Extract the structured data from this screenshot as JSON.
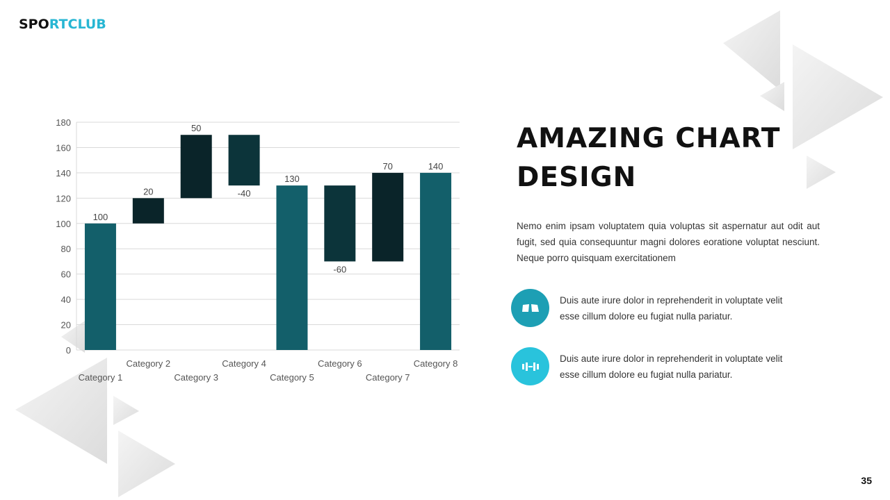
{
  "logo": {
    "part1": "SPO",
    "part2": "RTCLUB"
  },
  "title": "AMAZING CHART DESIGN",
  "body": "Nemo enim ipsam voluptatem quia voluptas sit aspernatur aut odit aut fugit, sed quia consequuntur magni dolores eoratione voluptat nesciunt. Neque porro quisquam exercitationem",
  "features": [
    {
      "icon": "boxing-ring-icon",
      "text": "Duis aute irure dolor in reprehenderit in voluptate velit esse cillum dolore eu fugiat nulla pariatur.",
      "color": "#1d9fb4"
    },
    {
      "icon": "dumbbell-icon",
      "text": "Duis aute irure dolor in reprehenderit in voluptate velit esse cillum dolore eu fugiat nulla pariatur.",
      "color": "#29c3dc"
    }
  ],
  "page_number": "35",
  "chart_data": {
    "type": "waterfall",
    "categories": [
      "Category 1",
      "Category 2",
      "Category 3",
      "Category 4",
      "Category 5",
      "Category 6",
      "Category 7",
      "Category 8"
    ],
    "values": [
      100,
      20,
      50,
      -40,
      130,
      -60,
      70,
      140
    ],
    "totals": [
      true,
      false,
      false,
      false,
      true,
      false,
      false,
      true
    ],
    "labels": [
      "100",
      "20",
      "50",
      "-40",
      "130",
      "-60",
      "70",
      "140"
    ],
    "ylim": [
      0,
      180
    ],
    "yticks": [
      0,
      20,
      40,
      60,
      80,
      100,
      120,
      140,
      160,
      180
    ],
    "grid": true,
    "colors": {
      "total": "#135f6a",
      "increase": "#0a2429",
      "decrease": "#0c343a"
    }
  }
}
